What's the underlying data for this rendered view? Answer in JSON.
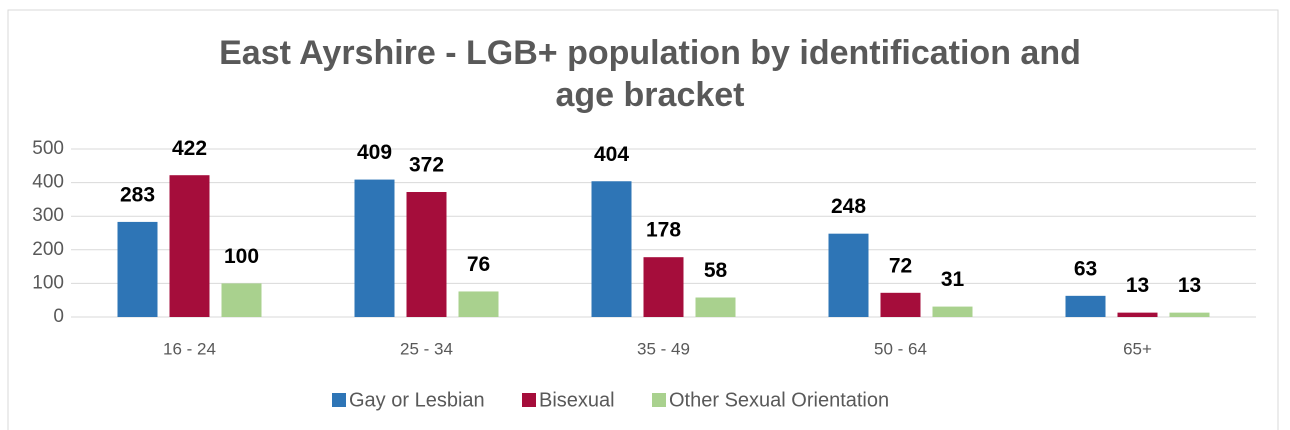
{
  "chart_data": {
    "type": "bar",
    "title_lines": [
      "East Ayrshire - LGB+ population by identification and",
      "age bracket"
    ],
    "categories": [
      "16 - 24",
      "25 - 34",
      "35 - 49",
      "50 - 64",
      "65+"
    ],
    "series": [
      {
        "name": "Gay or Lesbian",
        "color": "#2e75b6",
        "values": [
          283,
          409,
          404,
          248,
          63
        ]
      },
      {
        "name": "Bisexual",
        "color": "#a50d3b",
        "values": [
          422,
          372,
          178,
          72,
          13
        ]
      },
      {
        "name": "Other Sexual Orientation",
        "color": "#a9d18e",
        "values": [
          100,
          76,
          58,
          31,
          13
        ]
      }
    ],
    "ylim": [
      0,
      500
    ],
    "yticks": [
      0,
      100,
      200,
      300,
      400,
      500
    ],
    "grid": true
  }
}
